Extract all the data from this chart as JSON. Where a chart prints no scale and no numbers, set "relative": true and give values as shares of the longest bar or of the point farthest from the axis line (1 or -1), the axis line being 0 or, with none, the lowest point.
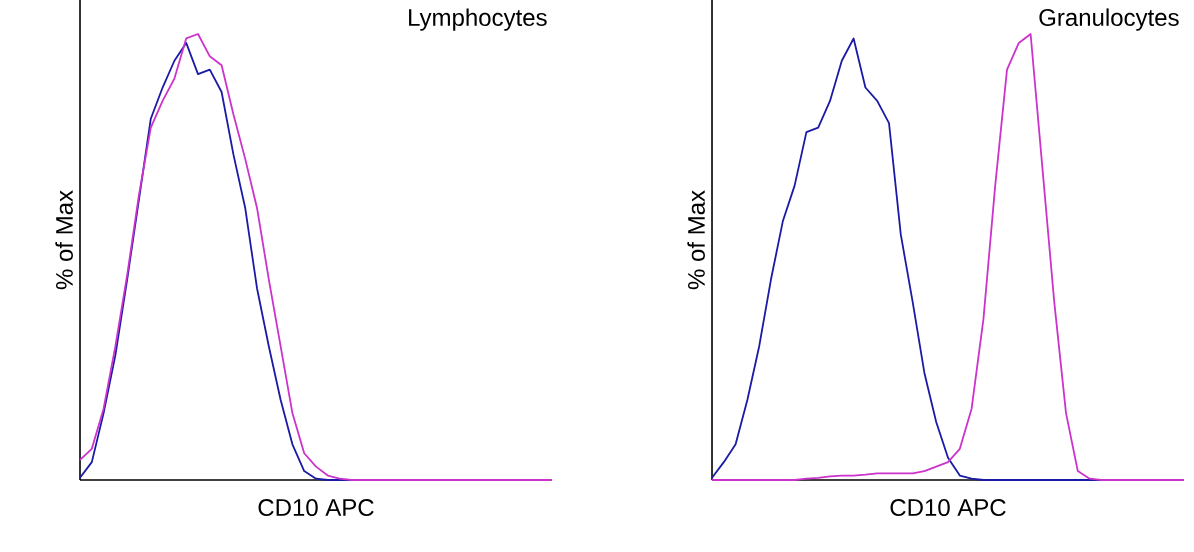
{
  "chart_data": [
    {
      "type": "line",
      "title": "Lymphocytes",
      "xlabel": "CD10 APC",
      "ylabel": "% of Max",
      "relative": true,
      "marker": "none",
      "line_style": "solid",
      "categories": [
        null,
        null,
        null,
        null,
        null,
        null,
        null,
        null,
        null,
        null,
        null,
        null,
        null,
        null,
        null,
        null,
        null,
        null,
        null,
        null,
        null,
        null,
        null,
        null,
        null,
        null,
        null,
        null,
        null,
        null,
        null,
        null,
        null,
        null,
        null,
        null,
        null,
        null,
        null,
        null,
        null
      ],
      "series": [
        {
          "color": "#1a1aa6",
          "values": [
            0.005,
            0.04,
            0.15,
            0.28,
            0.45,
            0.63,
            0.81,
            0.88,
            0.94,
            0.98,
            0.91,
            0.92,
            0.87,
            0.73,
            0.61,
            0.43,
            0.3,
            0.18,
            0.08,
            0.02,
            0.003,
            0,
            0,
            0,
            0,
            null,
            null,
            null,
            null,
            null,
            null,
            null,
            null,
            null,
            null,
            null,
            null,
            null,
            null,
            null,
            null
          ]
        },
        {
          "color": "#cc33cc",
          "values": [
            0.045,
            0.07,
            0.16,
            0.3,
            0.46,
            0.64,
            0.79,
            0.85,
            0.9,
            0.99,
            1.0,
            0.95,
            0.93,
            0.82,
            0.72,
            0.61,
            0.45,
            0.3,
            0.15,
            0.06,
            0.03,
            0.01,
            0.003,
            0,
            0,
            0,
            0,
            0,
            0,
            0,
            0,
            0,
            0,
            0,
            0,
            0,
            0,
            0,
            0,
            0,
            0
          ]
        }
      ]
    },
    {
      "type": "line",
      "title": "Granulocytes",
      "xlabel": "CD10 APC",
      "ylabel": "% of Max",
      "relative": true,
      "marker": "none",
      "line_style": "solid",
      "categories": [
        null,
        null,
        null,
        null,
        null,
        null,
        null,
        null,
        null,
        null,
        null,
        null,
        null,
        null,
        null,
        null,
        null,
        null,
        null,
        null,
        null,
        null,
        null,
        null,
        null,
        null,
        null,
        null,
        null,
        null,
        null,
        null,
        null,
        null,
        null,
        null,
        null,
        null,
        null,
        null,
        null
      ],
      "series": [
        {
          "color": "#1a1aa6",
          "values": [
            0.005,
            0.04,
            0.08,
            0.18,
            0.3,
            0.45,
            0.58,
            0.66,
            0.78,
            0.79,
            0.85,
            0.94,
            0.99,
            0.88,
            0.85,
            0.8,
            0.55,
            0.4,
            0.24,
            0.13,
            0.05,
            0.01,
            0.003,
            0,
            0,
            0,
            0,
            0,
            0,
            0,
            0,
            0,
            0,
            0,
            0,
            null,
            null,
            null,
            null,
            null,
            null
          ]
        },
        {
          "color": "#cc33cc",
          "values": [
            0,
            0,
            0,
            0,
            0,
            0,
            0,
            0,
            0.003,
            0.005,
            0.008,
            0.01,
            0.01,
            0.012,
            0.015,
            0.015,
            0.015,
            0.015,
            0.02,
            0.03,
            0.04,
            0.07,
            0.16,
            0.36,
            0.66,
            0.92,
            0.98,
            1.0,
            0.7,
            0.4,
            0.15,
            0.02,
            0.003,
            0,
            0,
            0,
            0,
            0,
            0,
            0,
            0
          ]
        }
      ]
    }
  ]
}
